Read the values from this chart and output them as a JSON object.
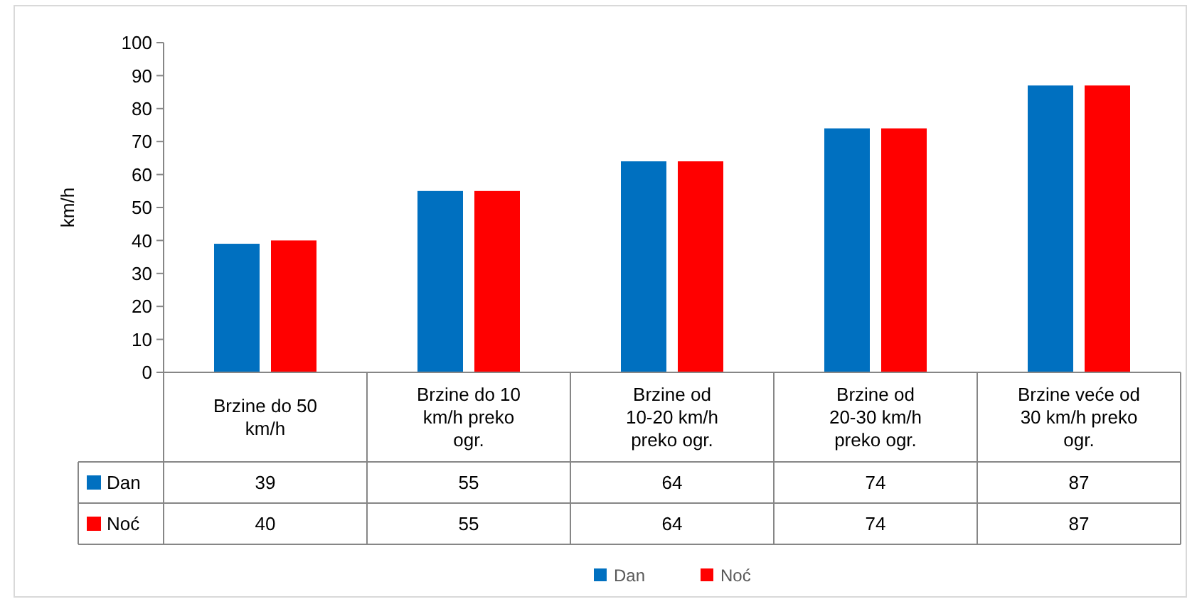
{
  "chart_data": {
    "type": "bar",
    "ylabel": "km/h",
    "categories": [
      "Brzine do 50 km/h",
      "Brzine do 10 km/h preko ogr.",
      "Brzine od 10-20 km/h preko ogr.",
      "Brzine od 20-30 km/h preko ogr.",
      "Brzine veće od 30 km/h preko ogr."
    ],
    "series": [
      {
        "name": "Dan",
        "color": "#0070c0",
        "values": [
          39,
          55,
          64,
          74,
          87
        ]
      },
      {
        "name": "Noć",
        "color": "#ff0000",
        "values": [
          40,
          55,
          64,
          74,
          87
        ]
      }
    ],
    "ylim": [
      0,
      100
    ],
    "yticks": [
      0,
      10,
      20,
      30,
      40,
      50,
      60,
      70,
      80,
      90,
      100
    ],
    "data_labels": true,
    "legend": "bottom",
    "grid": false
  }
}
